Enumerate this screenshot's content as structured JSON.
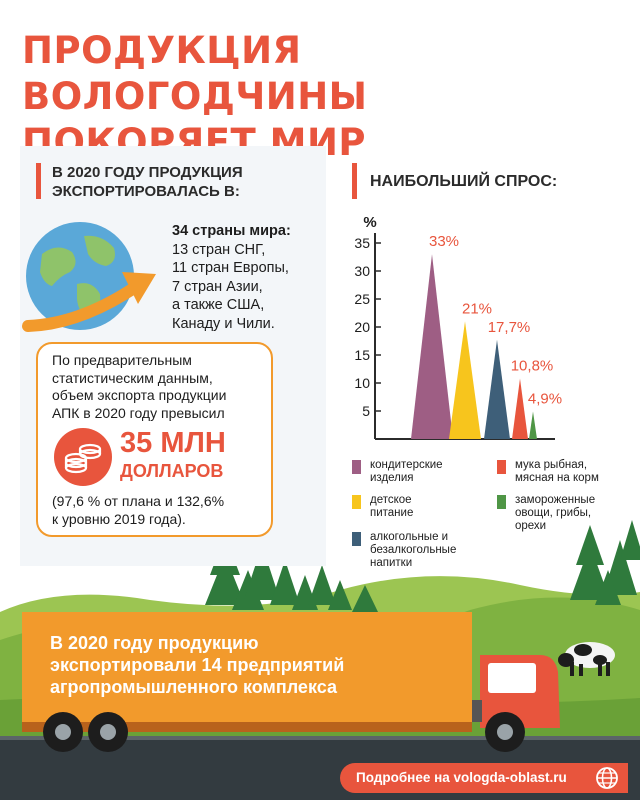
{
  "title": {
    "line1": "ПРОДУКЦИЯ ВОЛОГОДЧИНЫ",
    "line2": "ПОКОРЯЕТ МИР"
  },
  "export": {
    "heading_line1": "В 2020 ГОДУ ПРОДУКЦИЯ",
    "heading_line2": "ЭКСПОРТИРОВАЛАСЬ В:",
    "countries_total": "34 страны мира:",
    "countries_lines": [
      "13 стран СНГ,",
      "11 стран Европы,",
      "7 стран Азии,",
      "а также США,",
      "Канаду и Чили."
    ]
  },
  "stats": {
    "intro_lines": [
      "По предварительным",
      "статистическим данным,",
      "объем экспорта продукции",
      "АПК в 2020 году превысил"
    ],
    "value": "35 МЛН",
    "unit": "ДОЛЛАРОВ",
    "note_lines": [
      "(97,6 % от плана и 132,6%",
      "к уровню 2019 года)."
    ]
  },
  "demand_heading": "НАИБОЛЬШИЙ СПРОС:",
  "chart_data": {
    "type": "bar",
    "ylabel": "%",
    "ylim": [
      0,
      35
    ],
    "yticks": [
      5,
      10,
      15,
      20,
      25,
      30,
      35
    ],
    "values": [
      33,
      21,
      17.7,
      10.8,
      4.9
    ],
    "value_labels": [
      "33%",
      "21%",
      "17,7%",
      "10,8%",
      "4,9%"
    ],
    "colors": [
      "#9e5e84",
      "#f7c51d",
      "#3e5f79",
      "#e8553d",
      "#4f9646"
    ],
    "legend_lines": [
      [
        "кондитерские",
        "изделия"
      ],
      [
        "детское",
        "питание"
      ],
      [
        "алкогольные и",
        "безалкогольные",
        "напитки"
      ],
      [
        "мука рыбная,",
        "мясная на корм"
      ],
      [
        "замороженные",
        "овощи, грибы,",
        "орехи"
      ]
    ],
    "legend_placement": "bottom",
    "grid": false
  },
  "truck_banner_lines": [
    "В 2020 году продукцию",
    "экспортировали 14 предприятий",
    "агропромышленного комплекса"
  ],
  "footer": {
    "text": "Подробнее на vologda-oblast.ru",
    "icon": "globe-icon"
  },
  "colors": {
    "accent": "#e8553d",
    "orange": "#f29a2c",
    "grass": "#7fb241",
    "road": "#333b40"
  }
}
